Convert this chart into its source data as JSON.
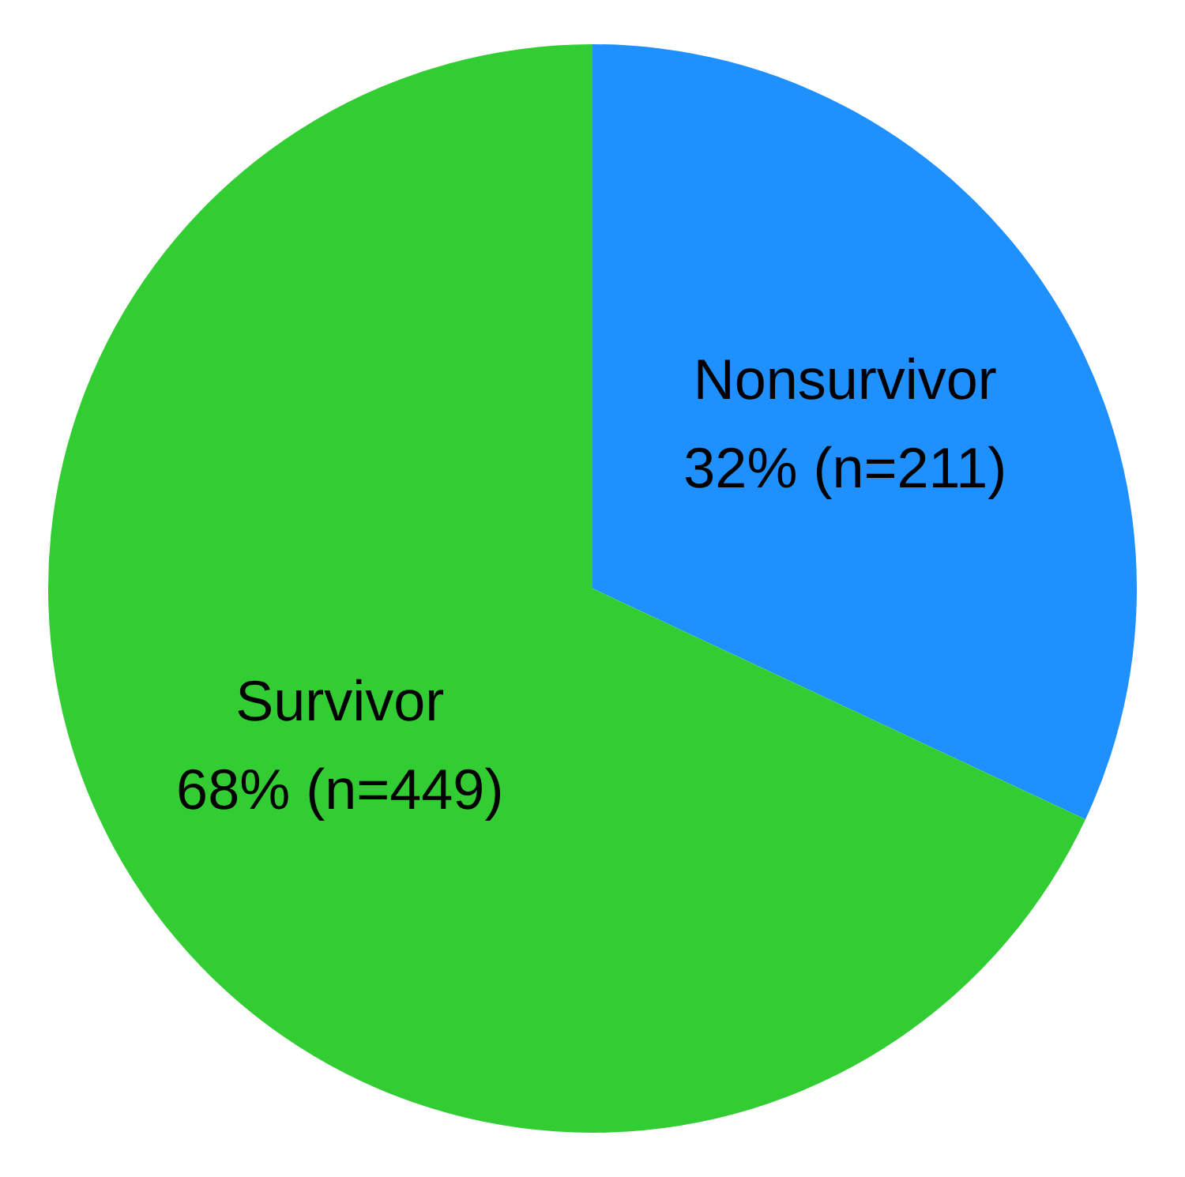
{
  "chart_data": {
    "type": "pie",
    "categories": [
      "Nonsurvivor",
      "Survivor"
    ],
    "values": [
      211,
      449
    ],
    "colors": [
      "#1e90ff",
      "#32cd32"
    ],
    "value_labels": [
      "32% (n=211)",
      "68% (n=449)"
    ],
    "legend": false
  }
}
